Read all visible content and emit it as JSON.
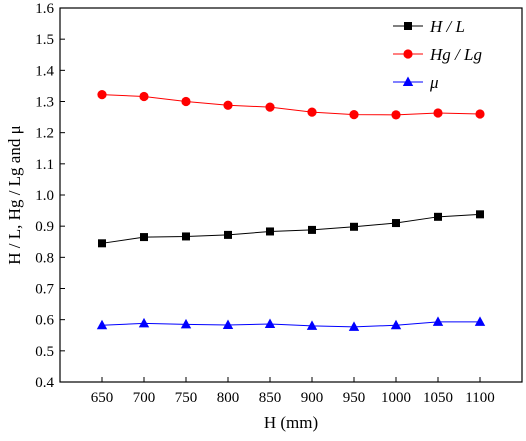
{
  "chart_data": {
    "type": "line",
    "xlabel": "H (mm)",
    "ylabel": "H / L, Hg / Lg and μ",
    "x": [
      650,
      700,
      750,
      800,
      850,
      900,
      950,
      1000,
      1050,
      1100
    ],
    "xlim": [
      600,
      1150
    ],
    "ylim": [
      0.4,
      1.6
    ],
    "y_ticks": [
      0.4,
      0.5,
      0.6,
      0.7,
      0.8,
      0.9,
      1.0,
      1.1,
      1.2,
      1.3,
      1.4,
      1.5,
      1.6
    ],
    "grid": false,
    "legend_position": "top-right",
    "series": [
      {
        "name": "H / L",
        "color": "#000000",
        "marker": "square",
        "values": [
          0.845,
          0.865,
          0.867,
          0.872,
          0.883,
          0.888,
          0.898,
          0.91,
          0.93,
          0.938
        ]
      },
      {
        "name": "Hg / Lg",
        "color": "#ff0000",
        "marker": "circle",
        "values": [
          1.322,
          1.316,
          1.3,
          1.288,
          1.282,
          1.266,
          1.258,
          1.257,
          1.263,
          1.26
        ]
      },
      {
        "name": "μ",
        "color": "#0000ff",
        "marker": "triangle",
        "values": [
          0.582,
          0.588,
          0.585,
          0.583,
          0.586,
          0.58,
          0.577,
          0.582,
          0.593,
          0.593
        ]
      }
    ]
  }
}
